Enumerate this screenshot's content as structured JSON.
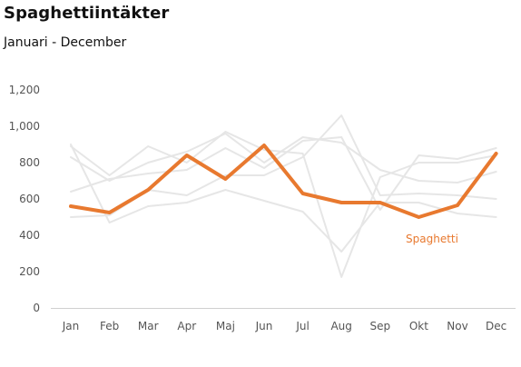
{
  "title": "Spaghettiintäkter",
  "subtitle": "Januari - December",
  "colors": {
    "highlight": "#e8792f",
    "background_series": "#e6e6e6",
    "axis": "#d0d0d0",
    "tick_text": "#555555"
  },
  "chart_data": {
    "type": "line",
    "categories": [
      "Jan",
      "Feb",
      "Mar",
      "Apr",
      "Maj",
      "Jun",
      "Jul",
      "Aug",
      "Sep",
      "Okt",
      "Nov",
      "Dec"
    ],
    "ylim": [
      0,
      1200
    ],
    "yticks": [
      0,
      200,
      400,
      600,
      800,
      1000,
      1200
    ],
    "ytick_labels": [
      "0",
      "200",
      "400",
      "600",
      "800",
      "1,000",
      "1,200"
    ],
    "grid": false,
    "highlight_series": {
      "name": "Spaghetti",
      "values": [
        560,
        525,
        650,
        840,
        710,
        895,
        630,
        580,
        580,
        500,
        565,
        850
      ]
    },
    "background_series": [
      {
        "values": [
          900,
          470,
          560,
          580,
          650,
          590,
          530,
          310,
          580,
          580,
          520,
          500
        ]
      },
      {
        "values": [
          500,
          510,
          650,
          620,
          730,
          730,
          830,
          1060,
          620,
          630,
          620,
          600
        ]
      },
      {
        "values": [
          640,
          710,
          740,
          760,
          880,
          770,
          920,
          940,
          540,
          840,
          820,
          880
        ]
      },
      {
        "values": [
          890,
          730,
          890,
          800,
          970,
          870,
          850,
          170,
          720,
          800,
          800,
          840
        ]
      },
      {
        "values": [
          830,
          700,
          800,
          860,
          960,
          800,
          940,
          910,
          760,
          700,
          690,
          750
        ]
      }
    ]
  }
}
